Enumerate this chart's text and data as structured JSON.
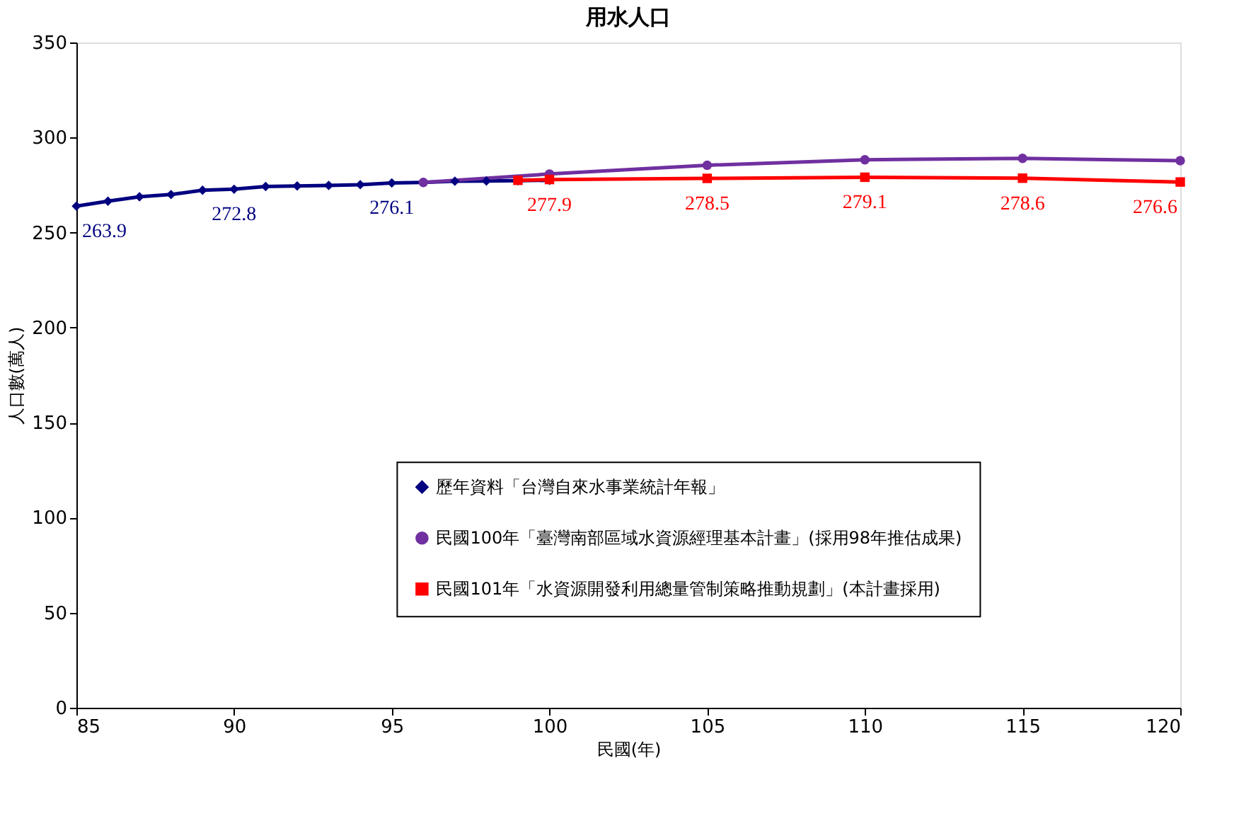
{
  "chart_data": {
    "type": "line",
    "title": "用水人口",
    "xlabel": "民國(年)",
    "ylabel": "人口數(萬人)",
    "xlim": [
      85,
      120
    ],
    "xticks": [
      85,
      90,
      95,
      100,
      105,
      110,
      115,
      120
    ],
    "ylim": [
      0,
      350
    ],
    "yticks": [
      0,
      50,
      100,
      150,
      200,
      250,
      300,
      350
    ],
    "grid": false,
    "legend": "bottom",
    "line_style": "solid",
    "series": [
      {
        "name": "歷年資料「台灣自來水事業統計年報」",
        "color": "#000080",
        "marker": "diamond",
        "x": [
          85,
          86,
          87,
          88,
          89,
          90,
          91,
          92,
          93,
          94,
          95,
          96,
          97,
          98,
          99,
          100
        ],
        "values": [
          263.9,
          266.5,
          268.8,
          270.0,
          272.3,
          272.8,
          274.2,
          274.5,
          274.8,
          275.2,
          276.1,
          276.4,
          277.0,
          277.1,
          277.3,
          277.5
        ],
        "value_labels": [
          "263.9",
          null,
          null,
          null,
          null,
          "272.8",
          null,
          null,
          null,
          null,
          "276.1",
          null,
          null,
          null,
          null,
          null
        ]
      },
      {
        "name": "民國100年「臺灣南部區域水資源經理基本計畫」(採用98年推估成果)",
        "color": "#7030a0",
        "marker": "circle",
        "x": [
          96,
          100,
          105,
          110,
          115,
          120
        ],
        "values": [
          276.4,
          280.8,
          285.4,
          288.3,
          289.0,
          287.8
        ]
      },
      {
        "name": "民國101年「水資源開發利用總量管制策略推動規劃」(本計畫採用)",
        "color": "#ff0000",
        "marker": "square",
        "x": [
          99,
          100,
          105,
          110,
          115,
          120
        ],
        "values": [
          277.5,
          277.9,
          278.5,
          279.1,
          278.6,
          276.6
        ],
        "value_labels": [
          null,
          "277.9",
          "278.5",
          "279.1",
          "278.6",
          "276.6"
        ]
      }
    ]
  }
}
